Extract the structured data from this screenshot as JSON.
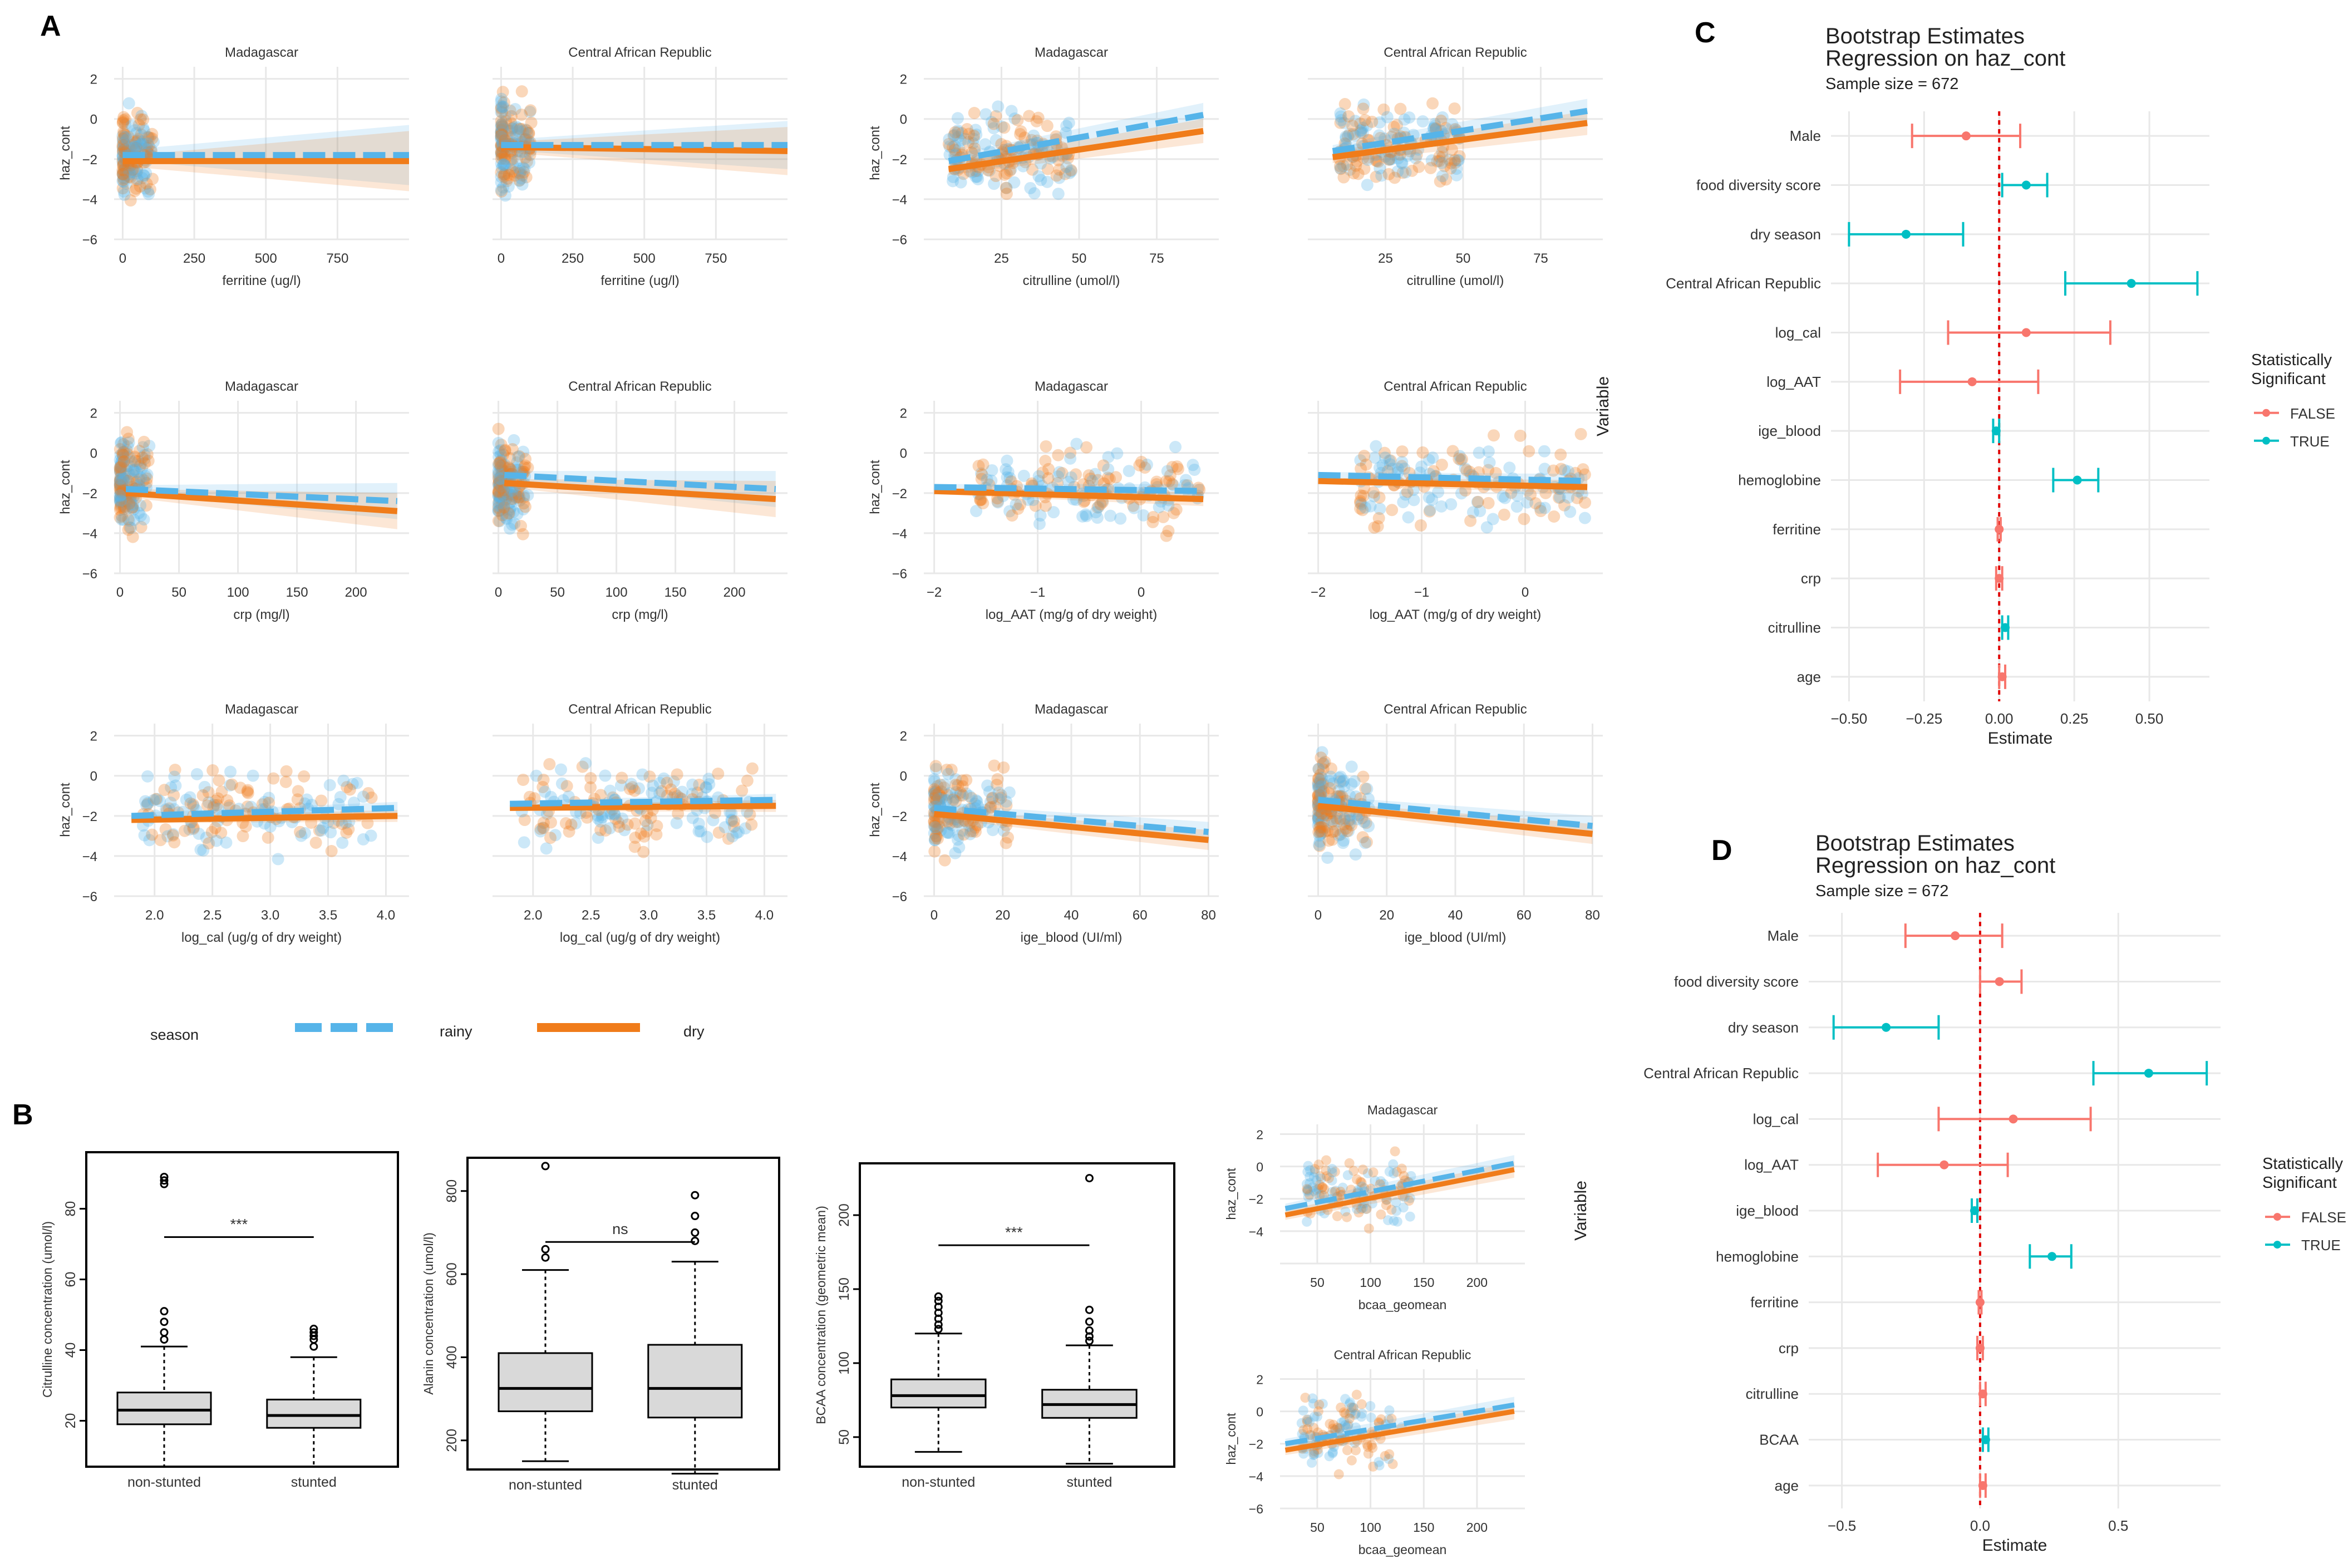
{
  "panel_labels": {
    "a": "A",
    "b": "B",
    "c": "C",
    "d": "D"
  },
  "colors": {
    "rainy": "#56B4E9",
    "dry": "#F07C1A",
    "sig_false": "#F8766D",
    "sig_true": "#00BFC4",
    "grid": "#E8E8E8",
    "box": "#D9D9D9"
  },
  "legend_a": {
    "title": "season",
    "rainy": "rainy",
    "dry": "dry"
  },
  "chart_data": [
    {
      "type": "scatter",
      "id": "a_ferritine_mad",
      "title": "Madagascar",
      "xlabel": "ferritine (ug/l)",
      "ylabel": "haz_cont",
      "xlim": [
        -30,
        1000
      ],
      "ylim": [
        -6,
        2.6
      ],
      "xticks": [
        0,
        250,
        500,
        750
      ],
      "yticks": [
        -6,
        -4,
        -2,
        0,
        2
      ],
      "show_ylabel": true,
      "cluster": {
        "x": [
          0,
          110
        ],
        "y": [
          -4.5,
          1
        ],
        "skew": 0.2
      },
      "fit": {
        "x": [
          0,
          1000
        ],
        "rainy": [
          -1.8,
          -1.8
        ],
        "dry": [
          -2.1,
          -2.1
        ],
        "band": [
          0.25,
          1.5
        ]
      }
    },
    {
      "type": "scatter",
      "id": "a_ferritine_car",
      "title": "Central African Republic",
      "xlabel": "ferritine (ug/l)",
      "ylabel": "",
      "xlim": [
        -30,
        1000
      ],
      "ylim": [
        -6,
        2.6
      ],
      "xticks": [
        0,
        250,
        500,
        750
      ],
      "yticks": [],
      "show_ylabel": false,
      "cluster": {
        "x": [
          0,
          110
        ],
        "y": [
          -4.5,
          2
        ],
        "skew": 0.2
      },
      "fit": {
        "x": [
          0,
          1000
        ],
        "rainy": [
          -1.3,
          -1.3
        ],
        "dry": [
          -1.4,
          -1.6
        ],
        "band": [
          0.25,
          1.2
        ]
      }
    },
    {
      "type": "scatter",
      "id": "a_citrulline_mad",
      "title": "Madagascar",
      "xlabel": "citrulline (umol/l)",
      "ylabel": "haz_cont",
      "xlim": [
        0,
        95
      ],
      "ylim": [
        -6,
        2.6
      ],
      "xticks": [
        25,
        50,
        75
      ],
      "yticks": [
        -6,
        -4,
        -2,
        0,
        2
      ],
      "show_ylabel": true,
      "cluster": {
        "x": [
          8,
          48
        ],
        "y": [
          -4.5,
          1
        ],
        "skew": 0.6
      },
      "fit": {
        "x": [
          8,
          90
        ],
        "rainy": [
          -2.1,
          0.2
        ],
        "dry": [
          -2.5,
          -0.6
        ],
        "band": [
          0.3,
          0.6
        ]
      }
    },
    {
      "type": "scatter",
      "id": "a_citrulline_car",
      "title": "Central African Republic",
      "xlabel": "citrulline (umol/l)",
      "ylabel": "",
      "xlim": [
        0,
        95
      ],
      "ylim": [
        -6,
        2.6
      ],
      "xticks": [
        25,
        50,
        75
      ],
      "yticks": [],
      "show_ylabel": false,
      "cluster": {
        "x": [
          10,
          50
        ],
        "y": [
          -4.5,
          1.5
        ],
        "skew": 0.6
      },
      "fit": {
        "x": [
          8,
          90
        ],
        "rainy": [
          -1.6,
          0.4
        ],
        "dry": [
          -1.9,
          -0.2
        ],
        "band": [
          0.3,
          0.6
        ]
      }
    },
    {
      "type": "scatter",
      "id": "a_crp_mad",
      "title": "Madagascar",
      "xlabel": "crp (mg/l)",
      "ylabel": "haz_cont",
      "xlim": [
        -5,
        245
      ],
      "ylim": [
        -6,
        2.6
      ],
      "xticks": [
        0,
        50,
        100,
        150,
        200
      ],
      "yticks": [
        -6,
        -4,
        -2,
        0,
        2
      ],
      "show_ylabel": true,
      "cluster": {
        "x": [
          0,
          25
        ],
        "y": [
          -4.5,
          1.5
        ],
        "skew": 0.15
      },
      "fit": {
        "x": [
          5,
          235
        ],
        "rainy": [
          -1.8,
          -2.4
        ],
        "dry": [
          -2.0,
          -2.9
        ],
        "band": [
          0.2,
          0.9
        ]
      }
    },
    {
      "type": "scatter",
      "id": "a_crp_car",
      "title": "Central African Republic",
      "xlabel": "crp (mg/l)",
      "ylabel": "",
      "xlim": [
        -5,
        245
      ],
      "ylim": [
        -6,
        2.6
      ],
      "xticks": [
        0,
        50,
        100,
        150,
        200
      ],
      "yticks": [],
      "show_ylabel": false,
      "cluster": {
        "x": [
          0,
          25
        ],
        "y": [
          -4.5,
          1.5
        ],
        "skew": 0.15
      },
      "fit": {
        "x": [
          5,
          235
        ],
        "rainy": [
          -1.1,
          -1.8
        ],
        "dry": [
          -1.5,
          -2.3
        ],
        "band": [
          0.2,
          0.9
        ]
      }
    },
    {
      "type": "scatter",
      "id": "a_aat_mad",
      "title": "Madagascar",
      "xlabel": "log_AAT (mg/g of dry weight)",
      "ylabel": "haz_cont",
      "xlim": [
        -2.1,
        0.75
      ],
      "ylim": [
        -6,
        2.6
      ],
      "xticks": [
        -2,
        -1,
        0
      ],
      "yticks": [
        -6,
        -4,
        -2,
        0,
        2
      ],
      "show_ylabel": true,
      "cluster": {
        "x": [
          -1.6,
          0.6
        ],
        "y": [
          -4.5,
          1
        ],
        "skew": 0.8
      },
      "fit": {
        "x": [
          -2,
          0.6
        ],
        "rainy": [
          -1.7,
          -1.9
        ],
        "dry": [
          -1.9,
          -2.3
        ],
        "band": [
          0.15,
          0.35
        ]
      }
    },
    {
      "type": "scatter",
      "id": "a_aat_car",
      "title": "Central African Republic",
      "xlabel": "log_AAT (mg/g of dry weight)",
      "ylabel": "",
      "xlim": [
        -2.1,
        0.75
      ],
      "ylim": [
        -6,
        2.6
      ],
      "xticks": [
        -2,
        -1,
        0
      ],
      "yticks": [],
      "show_ylabel": false,
      "cluster": {
        "x": [
          -1.6,
          0.6
        ],
        "y": [
          -4.5,
          1.5
        ],
        "skew": 0.8
      },
      "fit": {
        "x": [
          -2,
          0.6
        ],
        "rainy": [
          -1.1,
          -1.4
        ],
        "dry": [
          -1.4,
          -1.7
        ],
        "band": [
          0.15,
          0.35
        ]
      }
    },
    {
      "type": "scatter",
      "id": "a_cal_mad",
      "title": "Madagascar",
      "xlabel": "log_cal (ug/g of dry weight)",
      "ylabel": "haz_cont",
      "xlim": [
        1.65,
        4.2
      ],
      "ylim": [
        -6,
        2.6
      ],
      "xticks": [
        2.0,
        2.5,
        3.0,
        3.5,
        4.0
      ],
      "xtick_labels": [
        "2.0",
        "2.5",
        "3.0",
        "3.5",
        "4.0"
      ],
      "yticks": [
        -6,
        -4,
        -2,
        0,
        2
      ],
      "show_ylabel": true,
      "cluster": {
        "x": [
          1.9,
          3.9
        ],
        "y": [
          -4.5,
          1
        ],
        "skew": 0.8
      },
      "fit": {
        "x": [
          1.8,
          4.1
        ],
        "rainy": [
          -2.0,
          -1.6
        ],
        "dry": [
          -2.2,
          -2.0
        ],
        "band": [
          0.15,
          0.3
        ]
      }
    },
    {
      "type": "scatter",
      "id": "a_cal_car",
      "title": "Central African Republic",
      "xlabel": "log_cal (ug/g of dry weight)",
      "ylabel": "",
      "xlim": [
        1.65,
        4.2
      ],
      "ylim": [
        -6,
        2.6
      ],
      "xticks": [
        2.0,
        2.5,
        3.0,
        3.5,
        4.0
      ],
      "xtick_labels": [
        "2.0",
        "2.5",
        "3.0",
        "3.5",
        "4.0"
      ],
      "yticks": [],
      "show_ylabel": false,
      "cluster": {
        "x": [
          1.9,
          3.9
        ],
        "y": [
          -4.5,
          1.5
        ],
        "skew": 0.8
      },
      "fit": {
        "x": [
          1.8,
          4.1
        ],
        "rainy": [
          -1.4,
          -1.2
        ],
        "dry": [
          -1.6,
          -1.5
        ],
        "band": [
          0.15,
          0.3
        ]
      }
    },
    {
      "type": "scatter",
      "id": "a_ige_mad",
      "title": "Madagascar",
      "xlabel": "ige_blood (UI/ml)",
      "ylabel": "haz_cont",
      "xlim": [
        -3,
        83
      ],
      "ylim": [
        -6,
        2.6
      ],
      "xticks": [
        0,
        20,
        40,
        60,
        80
      ],
      "yticks": [
        -6,
        -4,
        -2,
        0,
        2
      ],
      "show_ylabel": true,
      "cluster": {
        "x": [
          0,
          22
        ],
        "y": [
          -4.5,
          1
        ],
        "skew": 0.25
      },
      "fit": {
        "x": [
          0,
          80
        ],
        "rainy": [
          -1.6,
          -2.8
        ],
        "dry": [
          -1.9,
          -3.2
        ],
        "band": [
          0.2,
          0.5
        ]
      }
    },
    {
      "type": "scatter",
      "id": "a_ige_car",
      "title": "Central African Republic",
      "xlabel": "ige_blood (UI/ml)",
      "ylabel": "",
      "xlim": [
        -3,
        83
      ],
      "ylim": [
        -6,
        2.6
      ],
      "xticks": [
        0,
        20,
        40,
        60,
        80
      ],
      "yticks": [],
      "show_ylabel": false,
      "cluster": {
        "x": [
          0,
          15
        ],
        "y": [
          -4.5,
          1.5
        ],
        "skew": 0.2
      },
      "fit": {
        "x": [
          0,
          80
        ],
        "rainy": [
          -1.2,
          -2.5
        ],
        "dry": [
          -1.5,
          -2.9
        ],
        "band": [
          0.2,
          0.5
        ]
      }
    },
    {
      "type": "box",
      "id": "b_citrulline",
      "ylabel": "Citrulline concentration (umol/l)",
      "ylim": [
        7,
        96
      ],
      "yticks": [
        20,
        40,
        60,
        80
      ],
      "categories": [
        "non-stunted",
        "stunted"
      ],
      "boxes": [
        {
          "q1": 19,
          "median": 23,
          "q3": 28,
          "whislo": 7,
          "whishi": 41,
          "outliers": [
            43,
            45,
            48,
            51,
            87,
            88,
            89
          ]
        },
        {
          "q1": 18,
          "median": 21.5,
          "q3": 26,
          "whislo": 7,
          "whishi": 38,
          "outliers": [
            41,
            43,
            44,
            45,
            46
          ]
        }
      ],
      "signif": "***"
    },
    {
      "type": "box",
      "id": "b_alanin",
      "ylabel": "Alanin concentration (umol/l)",
      "ylim": [
        130,
        880
      ],
      "yticks": [
        200,
        400,
        600,
        800
      ],
      "categories": [
        "non-stunted",
        "stunted"
      ],
      "boxes": [
        {
          "q1": 270,
          "median": 325,
          "q3": 410,
          "whislo": 150,
          "whishi": 610,
          "outliers": [
            640,
            660,
            860
          ]
        },
        {
          "q1": 255,
          "median": 325,
          "q3": 430,
          "whislo": 120,
          "whishi": 630,
          "outliers": [
            680,
            700,
            740,
            790
          ]
        }
      ],
      "signif": "ns"
    },
    {
      "type": "box",
      "id": "b_bcaa",
      "ylabel": "BCAA concentration (geometric mean)",
      "ylim": [
        30,
        235
      ],
      "yticks": [
        50,
        100,
        150,
        200
      ],
      "categories": [
        "non-stunted",
        "stunted"
      ],
      "boxes": [
        {
          "q1": 70,
          "median": 78,
          "q3": 89,
          "whislo": 40,
          "whishi": 120,
          "outliers": [
            123,
            126,
            130,
            134,
            138,
            142,
            145
          ]
        },
        {
          "q1": 63,
          "median": 72,
          "q3": 82,
          "whislo": 32,
          "whishi": 112,
          "outliers": [
            115,
            118,
            122,
            128,
            136,
            225
          ]
        }
      ],
      "signif": "***"
    },
    {
      "type": "scatter",
      "id": "b_bcaa_mad",
      "title": "Madagascar",
      "xlabel": "bcaa_geomean",
      "ylabel": "haz_cont",
      "xlim": [
        15,
        245
      ],
      "ylim": [
        -6,
        2.6
      ],
      "xticks": [
        50,
        100,
        150,
        200
      ],
      "yticks": [
        -4,
        -2,
        0,
        2
      ],
      "show_ylabel": true,
      "cluster": {
        "x": [
          40,
          140
        ],
        "y": [
          -4.5,
          1.5
        ],
        "skew": 0.5
      },
      "fit": {
        "x": [
          20,
          235
        ],
        "rainy": [
          -2.6,
          0.2
        ],
        "dry": [
          -3.0,
          -0.2
        ],
        "band": [
          0.3,
          0.5
        ]
      }
    },
    {
      "type": "scatter",
      "id": "b_bcaa_car",
      "title": "Central African Republic",
      "xlabel": "bcaa_geomean",
      "ylabel": "haz_cont",
      "xlim": [
        15,
        245
      ],
      "ylim": [
        -6,
        2.6
      ],
      "xticks": [
        50,
        100,
        150,
        200
      ],
      "yticks": [
        -6,
        -4,
        -2,
        0,
        2
      ],
      "show_ylabel": true,
      "cluster": {
        "x": [
          35,
          130
        ],
        "y": [
          -4.5,
          2
        ],
        "skew": 0.5
      },
      "fit": {
        "x": [
          20,
          235
        ],
        "rainy": [
          -2.0,
          0.4
        ],
        "dry": [
          -2.4,
          0.0
        ],
        "band": [
          0.3,
          0.5
        ]
      }
    },
    {
      "type": "errorbar",
      "id": "c_bootstrap",
      "title": "Bootstrap Estimates",
      "subtitle": "Regression on haz_cont",
      "sample_size": "Sample size = 672",
      "xlabel": "Estimate",
      "ylabel": "Variable",
      "xlim": [
        -0.56,
        0.7
      ],
      "xticks": [
        -0.5,
        -0.25,
        0,
        0.25,
        0.5
      ],
      "xtick_labels": [
        "-0.50",
        "-0.25",
        "0.00",
        "0.25",
        "0.50"
      ],
      "legend_title": "Statistically Significant",
      "legend_labels": [
        "FALSE",
        "TRUE"
      ],
      "rows": [
        {
          "label": "Male",
          "est": -0.11,
          "lo": -0.29,
          "hi": 0.07,
          "sig": false
        },
        {
          "label": "food diversity score",
          "est": 0.09,
          "lo": 0.01,
          "hi": 0.16,
          "sig": true
        },
        {
          "label": "dry season",
          "est": -0.31,
          "lo": -0.5,
          "hi": -0.12,
          "sig": true
        },
        {
          "label": "Central African Republic",
          "est": 0.44,
          "lo": 0.22,
          "hi": 0.66,
          "sig": true
        },
        {
          "label": "log_cal",
          "est": 0.09,
          "lo": -0.17,
          "hi": 0.37,
          "sig": false
        },
        {
          "label": "log_AAT",
          "est": -0.09,
          "lo": -0.33,
          "hi": 0.13,
          "sig": false
        },
        {
          "label": "ige_blood",
          "est": -0.01,
          "lo": -0.02,
          "hi": 0.0,
          "sig": true
        },
        {
          "label": "hemoglobine",
          "est": 0.26,
          "lo": 0.18,
          "hi": 0.33,
          "sig": true
        },
        {
          "label": "ferritine",
          "est": 0.0,
          "lo": -0.005,
          "hi": 0.005,
          "sig": false
        },
        {
          "label": "crp",
          "est": 0.0,
          "lo": -0.01,
          "hi": 0.01,
          "sig": false
        },
        {
          "label": "citrulline",
          "est": 0.02,
          "lo": 0.01,
          "hi": 0.03,
          "sig": true
        },
        {
          "label": "age",
          "est": 0.01,
          "lo": 0.0,
          "hi": 0.02,
          "sig": false
        }
      ]
    },
    {
      "type": "errorbar",
      "id": "d_bootstrap",
      "title": "Bootstrap Estimates",
      "subtitle": "Regression on haz_cont",
      "sample_size": "Sample size = 672",
      "xlabel": "Estimate",
      "ylabel": "Variable",
      "xlim": [
        -0.62,
        0.87
      ],
      "xticks": [
        -0.5,
        0,
        0.5
      ],
      "xtick_labels": [
        "-0.5",
        "0.0",
        "0.5"
      ],
      "legend_title": "Statistically Significant",
      "legend_labels": [
        "FALSE",
        "TRUE"
      ],
      "rows": [
        {
          "label": "Male",
          "est": -0.09,
          "lo": -0.27,
          "hi": 0.08,
          "sig": false
        },
        {
          "label": "food diversity score",
          "est": 0.07,
          "lo": 0.0,
          "hi": 0.15,
          "sig": false
        },
        {
          "label": "dry season",
          "est": -0.34,
          "lo": -0.53,
          "hi": -0.15,
          "sig": true
        },
        {
          "label": "Central African Republic",
          "est": 0.61,
          "lo": 0.41,
          "hi": 0.82,
          "sig": true
        },
        {
          "label": "log_cal",
          "est": 0.12,
          "lo": -0.15,
          "hi": 0.4,
          "sig": false
        },
        {
          "label": "log_AAT",
          "est": -0.13,
          "lo": -0.37,
          "hi": 0.1,
          "sig": false
        },
        {
          "label": "ige_blood",
          "est": -0.02,
          "lo": -0.03,
          "hi": -0.01,
          "sig": true
        },
        {
          "label": "hemoglobine",
          "est": 0.26,
          "lo": 0.18,
          "hi": 0.33,
          "sig": true
        },
        {
          "label": "ferritine",
          "est": 0.0,
          "lo": -0.005,
          "hi": 0.005,
          "sig": false
        },
        {
          "label": "crp",
          "est": 0.0,
          "lo": -0.01,
          "hi": 0.01,
          "sig": false
        },
        {
          "label": "citrulline",
          "est": 0.01,
          "lo": 0.0,
          "hi": 0.02,
          "sig": false
        },
        {
          "label": "BCAA",
          "est": 0.02,
          "lo": 0.01,
          "hi": 0.03,
          "sig": true
        },
        {
          "label": "age",
          "est": 0.01,
          "lo": 0.0,
          "hi": 0.02,
          "sig": false
        }
      ]
    }
  ]
}
